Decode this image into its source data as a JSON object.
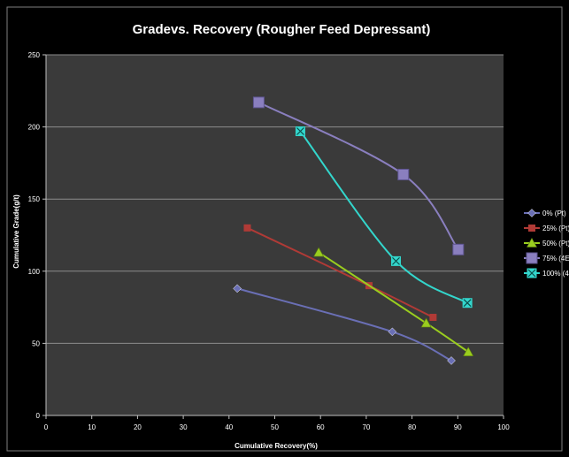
{
  "chart_data": {
    "type": "line",
    "title": "Gradevs. Recovery (Rougher Feed Depressant)",
    "xlabel": "Cumulative Recovery(%)",
    "ylabel": "Cumulative Grade(g/t)",
    "xlim": [
      0,
      100
    ],
    "ylim": [
      0,
      250
    ],
    "xticks": [
      "0",
      "10",
      "20",
      "30",
      "40",
      "50",
      "60",
      "70",
      "80",
      "90",
      "100"
    ],
    "yticks": [
      "0",
      "50",
      "100",
      "150",
      "200",
      "250"
    ],
    "grid": "horizontal",
    "legend_position": "right",
    "background": "#000000",
    "plot_background": "#3a3a3a",
    "series": [
      {
        "name": "0% (Pt)",
        "color": "#6a6fb5",
        "marker": "diamond",
        "x": [
          41.8,
          75.7,
          88.6
        ],
        "y": [
          88,
          58,
          38
        ]
      },
      {
        "name": "25% (Pt)",
        "color": "#b03a36",
        "marker": "square",
        "x": [
          44,
          70.6,
          84.6
        ],
        "y": [
          130,
          90,
          68
        ]
      },
      {
        "name": "50% (Pt)",
        "color": "#9acd1f",
        "marker": "triangle",
        "x": [
          59.6,
          83.1,
          92.3
        ],
        "y": [
          113,
          64,
          44
        ]
      },
      {
        "name": "75% (4E",
        "color": "#8a7fbf",
        "marker": "square-large",
        "x": [
          46.5,
          78.1,
          90.1
        ],
        "y": [
          217,
          167,
          115
        ]
      },
      {
        "name": "100% (4",
        "color": "#33d6cc",
        "marker": "x-square",
        "x": [
          55.6,
          76.5,
          92.1
        ],
        "y": [
          197,
          107,
          78
        ]
      }
    ]
  }
}
